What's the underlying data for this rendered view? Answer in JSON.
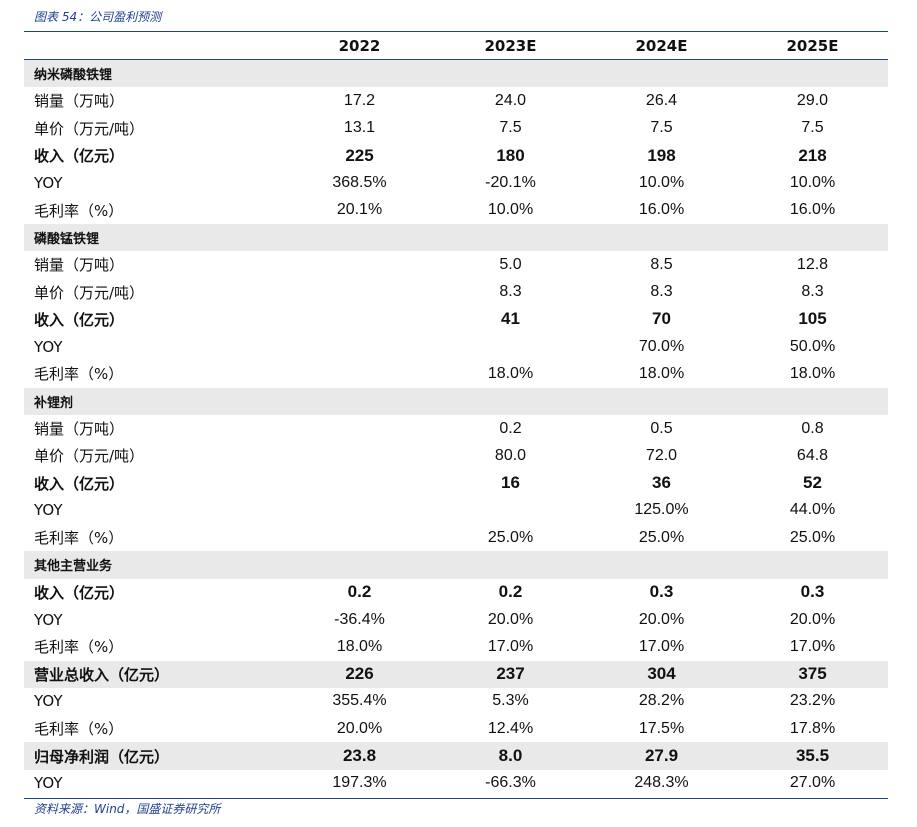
{
  "caption": "图表 54：公司盈利预测",
  "source": "资料来源：Wind，国盛证券研究所",
  "columns": [
    "",
    "2022",
    "2023E",
    "2024E",
    "2025E"
  ],
  "rows": [
    {
      "type": "section",
      "label": "纳米磷酸铁锂",
      "values": [
        "",
        "",
        "",
        ""
      ]
    },
    {
      "type": "normal",
      "label": "销量（万吨）",
      "values": [
        "17.2",
        "24.0",
        "26.4",
        "29.0"
      ]
    },
    {
      "type": "normal",
      "label": "单价（万元/吨）",
      "values": [
        "13.1",
        "7.5",
        "7.5",
        "7.5"
      ]
    },
    {
      "type": "bold",
      "label": "收入（亿元）",
      "values": [
        "225",
        "180",
        "198",
        "218"
      ]
    },
    {
      "type": "normal",
      "label": "YOY",
      "values": [
        "368.5%",
        "-20.1%",
        "10.0%",
        "10.0%"
      ]
    },
    {
      "type": "normal",
      "label": "毛利率（%）",
      "values": [
        "20.1%",
        "10.0%",
        "16.0%",
        "16.0%"
      ]
    },
    {
      "type": "section",
      "label": "磷酸锰铁锂",
      "values": [
        "",
        "",
        "",
        ""
      ]
    },
    {
      "type": "normal",
      "label": "销量（万吨）",
      "values": [
        "",
        "5.0",
        "8.5",
        "12.8"
      ]
    },
    {
      "type": "normal",
      "label": "单价（万元/吨）",
      "values": [
        "",
        "8.3",
        "8.3",
        "8.3"
      ]
    },
    {
      "type": "bold",
      "label": "收入（亿元）",
      "values": [
        "",
        "41",
        "70",
        "105"
      ]
    },
    {
      "type": "normal",
      "label": "YOY",
      "values": [
        "",
        "",
        "70.0%",
        "50.0%"
      ]
    },
    {
      "type": "normal",
      "label": "毛利率（%）",
      "values": [
        "",
        "18.0%",
        "18.0%",
        "18.0%"
      ]
    },
    {
      "type": "section",
      "label": "补锂剂",
      "values": [
        "",
        "",
        "",
        ""
      ]
    },
    {
      "type": "normal",
      "label": "销量（万吨）",
      "values": [
        "",
        "0.2",
        "0.5",
        "0.8"
      ]
    },
    {
      "type": "normal",
      "label": "单价（万元/吨）",
      "values": [
        "",
        "80.0",
        "72.0",
        "64.8"
      ]
    },
    {
      "type": "bold",
      "label": "收入（亿元）",
      "values": [
        "",
        "16",
        "36",
        "52"
      ]
    },
    {
      "type": "normal",
      "label": "YOY",
      "values": [
        "",
        "",
        "125.0%",
        "44.0%"
      ]
    },
    {
      "type": "normal",
      "label": "毛利率（%）",
      "values": [
        "",
        "25.0%",
        "25.0%",
        "25.0%"
      ]
    },
    {
      "type": "section",
      "label": "其他主营业务",
      "values": [
        "",
        "",
        "",
        ""
      ]
    },
    {
      "type": "bold",
      "label": "收入（亿元）",
      "values": [
        "0.2",
        "0.2",
        "0.3",
        "0.3"
      ]
    },
    {
      "type": "normal",
      "label": "YOY",
      "values": [
        "-36.4%",
        "20.0%",
        "20.0%",
        "20.0%"
      ]
    },
    {
      "type": "normal",
      "label": "毛利率（%）",
      "values": [
        "18.0%",
        "17.0%",
        "17.0%",
        "17.0%"
      ]
    },
    {
      "type": "bold-section",
      "label": "营业总收入（亿元）",
      "values": [
        "226",
        "237",
        "304",
        "375"
      ]
    },
    {
      "type": "normal",
      "label": "YOY",
      "values": [
        "355.4%",
        "5.3%",
        "28.2%",
        "23.2%"
      ]
    },
    {
      "type": "normal",
      "label": "毛利率（%）",
      "values": [
        "20.0%",
        "12.4%",
        "17.5%",
        "17.8%"
      ]
    },
    {
      "type": "bold-section",
      "label": "归母净利润（亿元）",
      "values": [
        "23.8",
        "8.0",
        "27.9",
        "35.5"
      ]
    },
    {
      "type": "normal",
      "label": "YOY",
      "values": [
        "197.3%",
        "-66.3%",
        "248.3%",
        "27.0%"
      ]
    }
  ]
}
